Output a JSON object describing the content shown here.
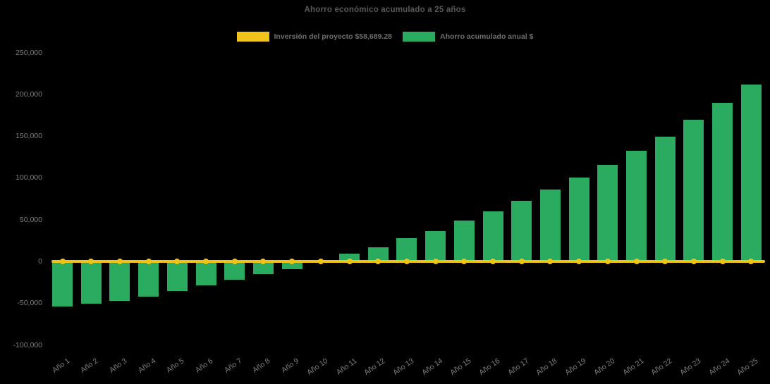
{
  "colors": {
    "background": "#000000",
    "bar_green": "#2BAB5F",
    "line_yellow": "#EFC319",
    "title_text": "#595959",
    "legend_text": "#6E6E6E",
    "axis_text": "#7F7F7F"
  },
  "chart_data": {
    "type": "bar",
    "title": "Ahorro económico acumulado a 25 años",
    "categories": [
      "Año 1",
      "Año 2",
      "Año 3",
      "Año 4",
      "Año 5",
      "Año 6",
      "Año 7",
      "Año 8",
      "Año 9",
      "Año 10",
      "Año 11",
      "Año 12",
      "Año 13",
      "Año 14",
      "Año 15",
      "Año 16",
      "Año 17",
      "Año 18",
      "Año 19",
      "Año 20",
      "Año 21",
      "Año 22",
      "Año 23",
      "Año 24",
      "Año 25"
    ],
    "series": [
      {
        "name": "Inversión del proyecto $58,689.28",
        "type": "line",
        "color": "#EFC319",
        "marker": "circle",
        "values": [
          0,
          0,
          0,
          0,
          0,
          0,
          0,
          0,
          0,
          0,
          0,
          0,
          0,
          0,
          0,
          0,
          0,
          0,
          0,
          0,
          0,
          0,
          0,
          0,
          0
        ]
      },
      {
        "name": "Ahorro acumulado anual $",
        "type": "bar",
        "color": "#2BAB5F",
        "values": [
          -54000,
          -51000,
          -47000,
          -42000,
          -35500,
          -29000,
          -22000,
          -15000,
          -9500,
          0,
          9000,
          17000,
          27500,
          36500,
          48500,
          59500,
          72500,
          86000,
          100500,
          115500,
          132500,
          149500,
          169500,
          190000,
          211500
        ]
      }
    ],
    "ylim": [
      -100000,
      250000
    ],
    "yticks": [
      250000,
      200000,
      150000,
      100000,
      50000,
      0,
      -50000,
      -100000
    ],
    "ytick_labels": [
      "250,000",
      "200,000",
      "150,000",
      "100,000",
      "50,000",
      "0",
      "-50,000",
      "-100,000"
    ],
    "xlabel": "",
    "ylabel": "",
    "grid": false,
    "legend_position": "top-center",
    "background": "#000000"
  }
}
